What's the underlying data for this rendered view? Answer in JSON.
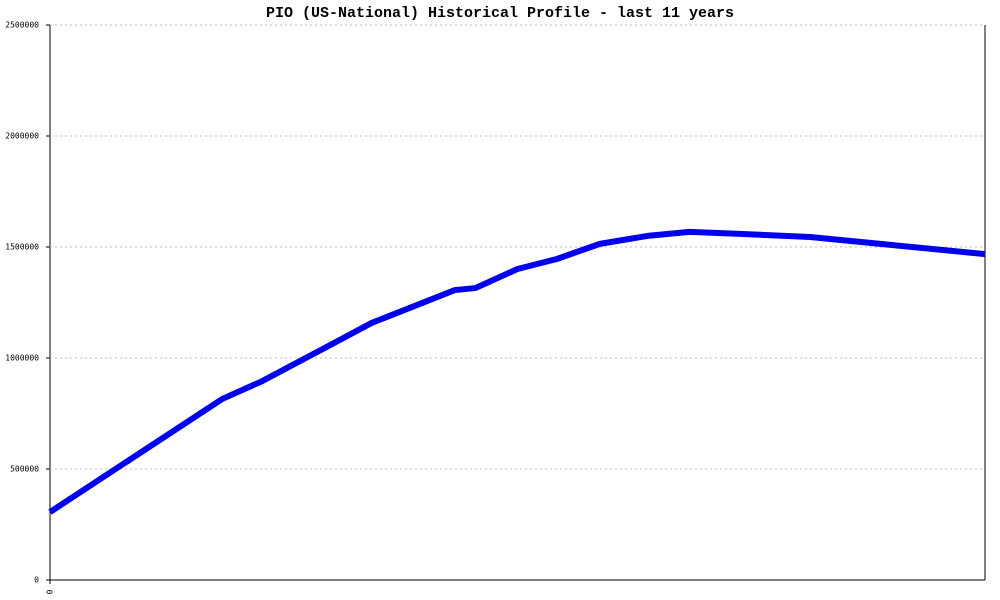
{
  "chart_data": {
    "type": "line",
    "title": "PIO (US-National) Historical Profile - last 11 years",
    "x": [
      0,
      18.4,
      22.7,
      30,
      34.4,
      43.3,
      45.5,
      50,
      54.2,
      58.8,
      63.9,
      68.4,
      73.8,
      81.3,
      100
    ],
    "series": [
      {
        "color": "#0000ee",
        "values": [
          306000,
          815000,
          896000,
          1059000,
          1158000,
          1306000,
          1315000,
          1401000,
          1446000,
          1514000,
          1550000,
          1568000,
          1559000,
          1545000,
          1468000
        ]
      }
    ],
    "xlim": [
      0,
      100
    ],
    "xticks": [
      0
    ],
    "ylim": [
      0,
      2500000
    ],
    "yticks": [
      0,
      500000,
      1000000,
      1500000,
      2000000,
      2500000
    ],
    "grid": true
  }
}
